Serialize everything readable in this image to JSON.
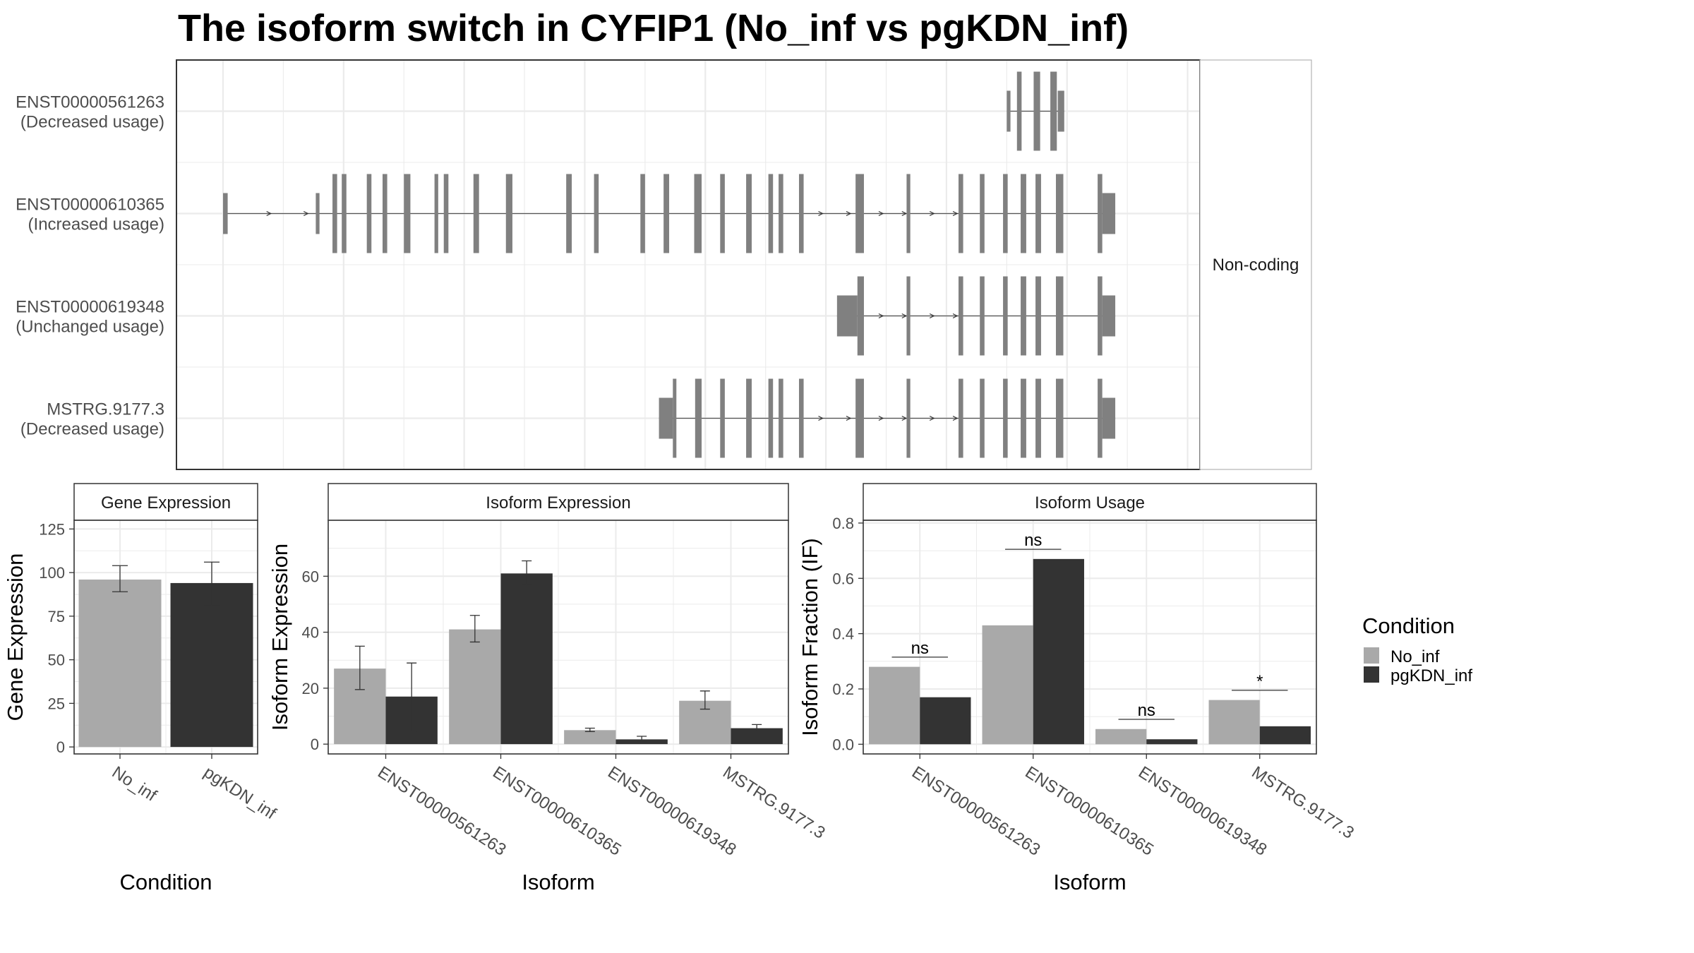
{
  "title": "The isoform switch in CYFIP1 (No_inf vs pgKDN_inf)",
  "colors": {
    "no_inf": "#a9a9a9",
    "pgkdn_inf": "#333333",
    "exon": "#808080",
    "grid": "#ebebeb",
    "panel_border": "#333333"
  },
  "chart_data": [
    {
      "type": "isoform-structure",
      "strip_label": "Non-coding",
      "xlim": [
        0,
        100
      ],
      "isoforms": [
        {
          "id": "ENST00000561263",
          "usage": "(Decreased usage)",
          "exons": [
            [
              84.5,
              84.9,
              "utr"
            ],
            [
              85.6,
              86.1,
              "cds"
            ],
            [
              87.4,
              88.1,
              "cds"
            ],
            [
              89.2,
              89.9,
              "cds"
            ],
            [
              90.0,
              90.7,
              "utr"
            ]
          ],
          "arrows": []
        },
        {
          "id": "ENST00000610365",
          "usage": "(Increased usage)",
          "exons": [
            [
              0.0,
              0.5,
              "utr"
            ],
            [
              10.0,
              10.4,
              "utr"
            ],
            [
              11.8,
              12.3,
              "cds"
            ],
            [
              12.8,
              13.3,
              "cds"
            ],
            [
              15.5,
              16.0,
              "cds"
            ],
            [
              17.2,
              17.7,
              "cds"
            ],
            [
              19.5,
              20.2,
              "cds"
            ],
            [
              22.8,
              23.2,
              "cds"
            ],
            [
              23.8,
              24.3,
              "cds"
            ],
            [
              27.0,
              27.6,
              "cds"
            ],
            [
              30.5,
              31.2,
              "cds"
            ],
            [
              37.0,
              37.6,
              "cds"
            ],
            [
              40.0,
              40.5,
              "cds"
            ],
            [
              45.0,
              45.5,
              "cds"
            ],
            [
              47.5,
              48.1,
              "cds"
            ],
            [
              50.8,
              51.6,
              "cds"
            ],
            [
              53.6,
              54.1,
              "cds"
            ],
            [
              56.4,
              57.0,
              "cds"
            ],
            [
              58.8,
              59.3,
              "cds"
            ],
            [
              59.9,
              60.4,
              "cds"
            ],
            [
              62.1,
              62.6,
              "cds"
            ],
            [
              68.2,
              69.1,
              "cds"
            ],
            [
              73.7,
              74.1,
              "cds"
            ],
            [
              79.3,
              79.8,
              "cds"
            ],
            [
              81.6,
              82.1,
              "cds"
            ],
            [
              84.1,
              84.6,
              "cds"
            ],
            [
              86.0,
              86.6,
              "cds"
            ],
            [
              87.6,
              88.2,
              "cds"
            ],
            [
              89.8,
              90.6,
              "cds"
            ],
            [
              94.3,
              94.8,
              "cds"
            ],
            [
              94.8,
              96.2,
              "utr"
            ]
          ],
          "arrows": [
            5.0,
            9.0,
            64.5,
            67.5,
            71.0,
            73.5,
            76.5,
            79.0
          ]
        },
        {
          "id": "ENST00000619348",
          "usage": "(Unchanged usage)",
          "exons": [
            [
              66.2,
              68.4,
              "utr"
            ],
            [
              68.4,
              69.1,
              "cds"
            ],
            [
              73.7,
              74.1,
              "cds"
            ],
            [
              79.3,
              79.8,
              "cds"
            ],
            [
              81.6,
              82.1,
              "cds"
            ],
            [
              84.1,
              84.6,
              "cds"
            ],
            [
              86.0,
              86.6,
              "cds"
            ],
            [
              87.6,
              88.2,
              "cds"
            ],
            [
              89.8,
              90.6,
              "cds"
            ],
            [
              94.3,
              94.8,
              "cds"
            ],
            [
              94.8,
              96.2,
              "utr"
            ]
          ],
          "arrows": [
            71.0,
            73.5,
            76.5,
            79.0
          ]
        },
        {
          "id": "MSTRG.9177.3",
          "usage": "(Decreased usage)",
          "exons": [
            [
              47.0,
              48.5,
              "utr"
            ],
            [
              48.5,
              48.8,
              "cds"
            ],
            [
              50.9,
              51.6,
              "cds"
            ],
            [
              53.6,
              54.1,
              "cds"
            ],
            [
              56.4,
              57.0,
              "cds"
            ],
            [
              58.8,
              59.3,
              "cds"
            ],
            [
              59.9,
              60.4,
              "cds"
            ],
            [
              62.1,
              62.6,
              "cds"
            ],
            [
              68.2,
              69.1,
              "cds"
            ],
            [
              73.7,
              74.1,
              "cds"
            ],
            [
              79.3,
              79.8,
              "cds"
            ],
            [
              81.6,
              82.1,
              "cds"
            ],
            [
              84.1,
              84.6,
              "cds"
            ],
            [
              86.0,
              86.6,
              "cds"
            ],
            [
              87.6,
              88.2,
              "cds"
            ],
            [
              89.8,
              90.6,
              "cds"
            ],
            [
              94.3,
              94.8,
              "cds"
            ],
            [
              94.8,
              96.2,
              "utr"
            ]
          ],
          "arrows": [
            64.5,
            67.5,
            71.0,
            73.5,
            76.5,
            79.0
          ]
        }
      ]
    },
    {
      "type": "bar",
      "strip_label": "Gene Expression",
      "xlabel": "Condition",
      "ylabel": "Gene Expression",
      "ylim": [
        -4,
        130
      ],
      "yticks": [
        0,
        25,
        50,
        75,
        100,
        125
      ],
      "categories": [
        "No_inf",
        "pgKDN_inf"
      ],
      "values": [
        96,
        94
      ],
      "errors": [
        [
          89,
          104
        ],
        [
          81,
          106
        ]
      ]
    },
    {
      "type": "bar",
      "strip_label": "Isoform Expression",
      "xlabel": "Isoform",
      "ylabel": "Isoform Expression",
      "ylim": [
        -3.5,
        80
      ],
      "yticks": [
        0,
        20,
        40,
        60
      ],
      "categories": [
        "ENST00000561263",
        "ENST00000610365",
        "ENST00000619348",
        "MSTRG.9177.3"
      ],
      "series": [
        {
          "name": "No_inf",
          "values": [
            27,
            41,
            5,
            15.5
          ],
          "errors": [
            [
              19.5,
              35
            ],
            [
              36.5,
              46
            ],
            [
              4.5,
              5.7
            ],
            [
              12.5,
              19
            ]
          ]
        },
        {
          "name": "pgKDN_inf",
          "values": [
            17,
            61,
            1.7,
            5.7
          ],
          "errors": [
            [
              4.5,
              29
            ],
            [
              57,
              65.5
            ],
            [
              0.8,
              2.8
            ],
            [
              4.5,
              7
            ]
          ]
        }
      ]
    },
    {
      "type": "bar",
      "strip_label": "Isoform Usage",
      "xlabel": "Isoform",
      "ylabel": "Isoform Fraction (IF)",
      "ylim": [
        -0.035,
        0.81
      ],
      "yticks": [
        0.0,
        0.2,
        0.4,
        0.6,
        0.8
      ],
      "ytick_labels": [
        "0.0",
        "0.2",
        "0.4",
        "0.6",
        "0.8"
      ],
      "categories": [
        "ENST00000561263",
        "ENST00000610365",
        "ENST00000619348",
        "MSTRG.9177.3"
      ],
      "series": [
        {
          "name": "No_inf",
          "values": [
            0.28,
            0.43,
            0.055,
            0.16
          ]
        },
        {
          "name": "pgKDN_inf",
          "values": [
            0.17,
            0.67,
            0.018,
            0.065
          ]
        }
      ],
      "significance": [
        {
          "label": "ns",
          "y": 0.315
        },
        {
          "label": "ns",
          "y": 0.705
        },
        {
          "label": "ns",
          "y": 0.09
        },
        {
          "label": "*",
          "y": 0.195
        }
      ]
    }
  ],
  "legend": {
    "title": "Condition",
    "items": [
      {
        "label": "No_inf",
        "color": "#a9a9a9"
      },
      {
        "label": "pgKDN_inf",
        "color": "#333333"
      }
    ]
  }
}
